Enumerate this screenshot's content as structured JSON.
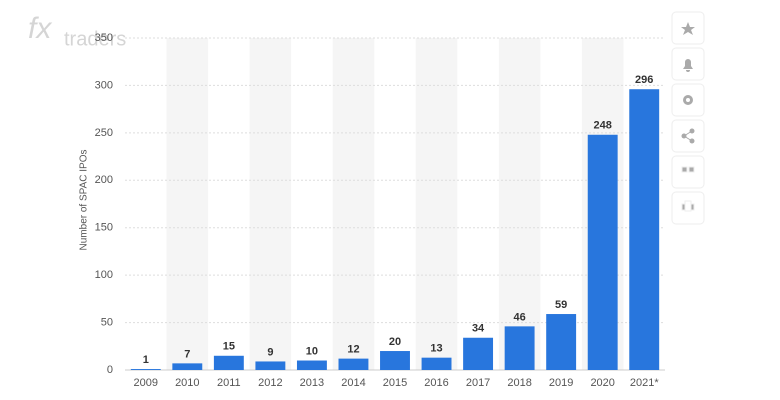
{
  "logo": {
    "brand": "fx",
    "name": "traders"
  },
  "chart_data": {
    "type": "bar",
    "y_label": "Number of SPAC IPOs",
    "categories": [
      "2009",
      "2010",
      "2011",
      "2012",
      "2013",
      "2014",
      "2015",
      "2016",
      "2017",
      "2018",
      "2019",
      "2020",
      "2021*"
    ],
    "values": [
      1,
      7,
      15,
      9,
      10,
      12,
      20,
      13,
      34,
      46,
      59,
      248,
      296
    ],
    "color": "#2876dd",
    "ylim": [
      0,
      350
    ],
    "yticks": [
      0,
      50,
      100,
      150,
      200,
      250,
      300,
      350
    ],
    "grid": true
  }
}
